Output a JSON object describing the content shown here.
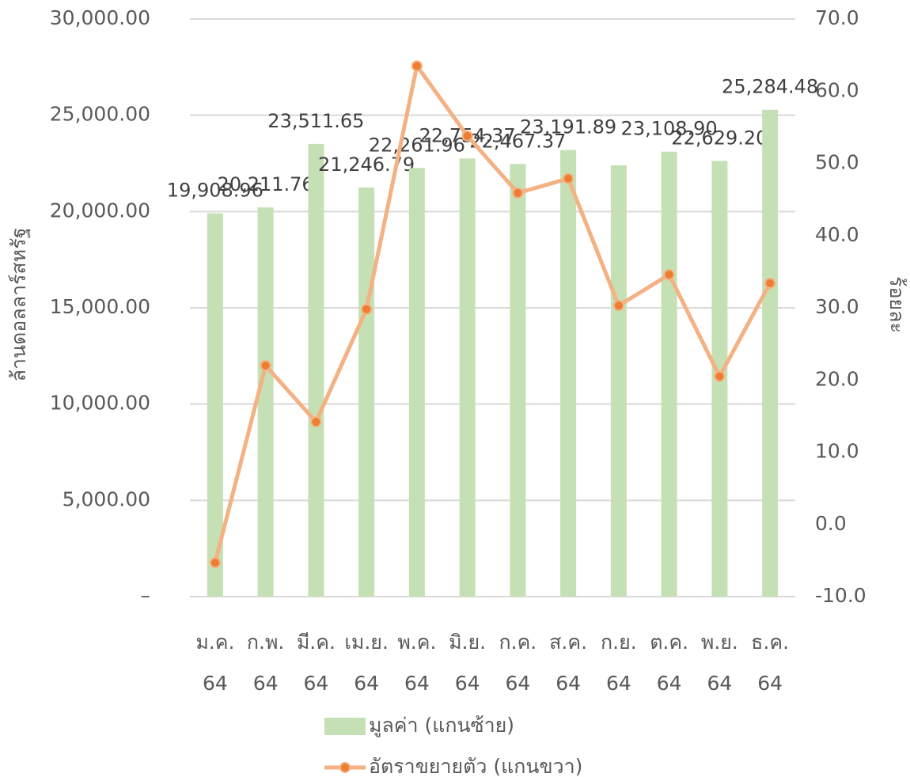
{
  "chart_data": {
    "type": "bar",
    "y_label": "ล้านดอลลาร์สหรัฐ",
    "y2_label": "ร้อยละ",
    "categories": [
      "ม.ค. 64",
      "ก.พ. 64",
      "มี.ค. 64",
      "เม.ย. 64",
      "พ.ค. 64",
      "มิ.ย. 64",
      "ก.ค. 64",
      "ส.ค. 64",
      "ก.ย. 64",
      "ต.ค. 64",
      "พ.ย. 64",
      "ธ.ค. 64"
    ],
    "series": [
      {
        "name": "มูลค่า (แกนซ้าย)",
        "type": "bar",
        "color": "#c5e0b4",
        "values": [
          19908.96,
          20211.76,
          23511.65,
          21246.79,
          22261.96,
          22754.37,
          22467.37,
          23191.89,
          22400,
          23108.9,
          22629.2,
          25284.48
        ],
        "value_labels": [
          "19,908.96",
          "20,211.76",
          "23,511.65",
          "21,246.79",
          "22,261.96",
          "22,754.37",
          "22,467.37",
          "23,191.89",
          null,
          "23,108.90",
          "22,629.20",
          "25,284.48"
        ]
      },
      {
        "name": "อัตราขยายตัว (แกนขวา)",
        "type": "line",
        "axis": "y2",
        "color": "#f4b183",
        "marker_color": "#ed7d31",
        "values": [
          -5.3,
          22.0,
          14.2,
          29.8,
          63.5,
          53.8,
          45.9,
          47.9,
          30.3,
          34.6,
          20.5,
          33.4
        ]
      }
    ],
    "ylim": [
      0,
      30000
    ],
    "yticks": [
      {
        "value": 0,
        "label": "–"
      },
      {
        "value": 5000,
        "label": "5,000.00"
      },
      {
        "value": 10000,
        "label": "10,000.00"
      },
      {
        "value": 15000,
        "label": "15,000.00"
      },
      {
        "value": 20000,
        "label": "20,000.00"
      },
      {
        "value": 25000,
        "label": "25,000.00"
      },
      {
        "value": 30000,
        "label": "30,000.00"
      }
    ],
    "y2lim": [
      -10,
      70
    ],
    "y2ticks": [
      {
        "value": -10,
        "label": "-10.0"
      },
      {
        "value": 0,
        "label": "0.0"
      },
      {
        "value": 10,
        "label": "10.0"
      },
      {
        "value": 20,
        "label": "20.0"
      },
      {
        "value": 30,
        "label": "30.0"
      },
      {
        "value": 40,
        "label": "40.0"
      },
      {
        "value": 50,
        "label": "50.0"
      },
      {
        "value": 60,
        "label": "60.0"
      },
      {
        "value": 70,
        "label": "70.0"
      }
    ],
    "grid": true,
    "legend": "bottom"
  }
}
